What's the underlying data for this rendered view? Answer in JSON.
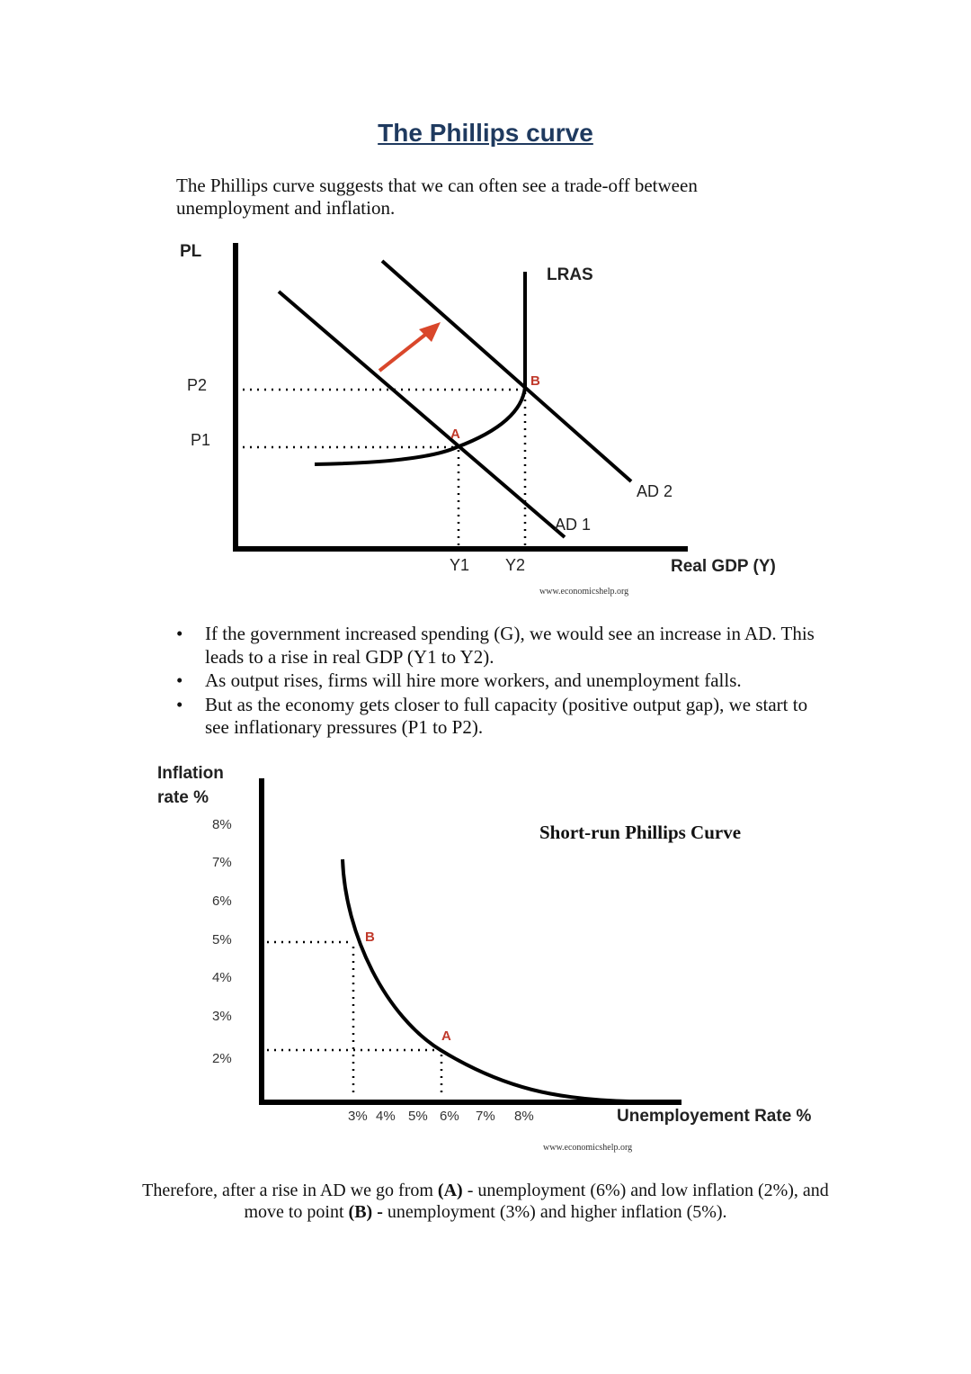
{
  "title": "The Phillips curve",
  "intro": "The Phillips curve suggests that we can often see a trade-off between unemployment and inflation.",
  "diagram1": {
    "y_axis": "PL",
    "x_axis": "Real GDP (Y)",
    "p2": "P2",
    "p1": "P1",
    "lras": "LRAS",
    "ad1": "AD 1",
    "ad2": "AD 2",
    "point_a": "A",
    "point_b": "B",
    "y1": "Y1",
    "y2": "Y2",
    "source": "www.economicshelp.org",
    "arrow_color": "#d9472b",
    "point_color": "#c0392b"
  },
  "bullets": [
    "If the government increased spending (G), we would see an increase in AD. This leads to a rise in real GDP (Y1 to Y2).",
    "As output rises, firms will hire more workers, and unemployment falls.",
    "But as the economy gets closer to full capacity (positive output gap), we start to see inflationary pressures (P1 to P2)."
  ],
  "diagram2": {
    "y_axis_line1": "Inflation",
    "y_axis_line2": "rate %",
    "x_axis": "Unemployement Rate %",
    "curve_title": "Short-run Phillips Curve",
    "y_ticks": [
      "8%",
      "7%",
      "6%",
      "5%",
      "4%",
      "3%",
      "2%"
    ],
    "x_ticks": [
      "3%",
      "4%",
      "5%",
      "6%",
      "7%",
      "8%"
    ],
    "point_a": "A",
    "point_b": "B",
    "source": "www.economicshelp.org"
  },
  "conclusion": {
    "part1": "Therefore, after a rise in AD we go from ",
    "a": "(A)",
    "part2": " - unemployment (6%) and low inflation (2%), and move to point ",
    "b": "(B) -",
    "part3": " unemployment (3%) and higher inflation (5%)."
  }
}
